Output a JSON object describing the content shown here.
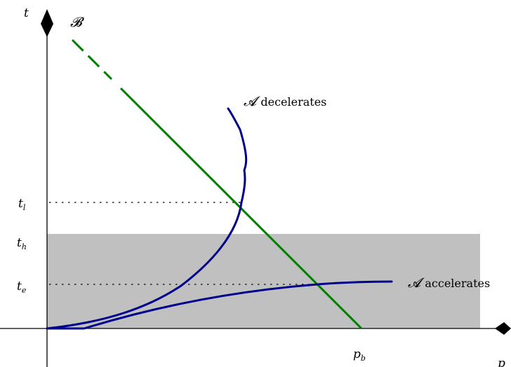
{
  "axes": {
    "vertical_label": "t",
    "horizontal_label": "p"
  },
  "ticks": {
    "tl": {
      "base": "t",
      "sub": "l"
    },
    "th": {
      "base": "t",
      "sub": "h"
    },
    "te": {
      "base": "t",
      "sub": "e"
    },
    "pb": {
      "base": "p",
      "sub": "b"
    }
  },
  "labels": {
    "b_line": "𝓑",
    "a_symbol": "𝓐",
    "a_decelerates": "decelerates",
    "a_accelerates": "accelerates"
  },
  "colors": {
    "b_line": "#008000",
    "a_curves": "#00008b",
    "band": "#c0c0c0",
    "axes": "#000000"
  }
}
